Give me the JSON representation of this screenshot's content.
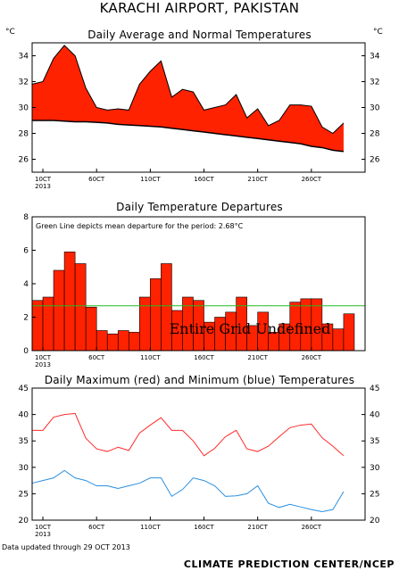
{
  "title": "KARACHI AIRPORT, PAKISTAN",
  "footer": {
    "updated": "Data updated through 29 OCT 2013",
    "credit": "CLIMATE PREDICTION CENTER/NCEP"
  },
  "unit_left": "°C",
  "unit_right": "°C",
  "colors": {
    "fill": "#ff2200",
    "max_line": "#ff2a2a",
    "min_line": "#2a8fe0",
    "mean_line": "#22bb22"
  },
  "chart_data": [
    {
      "type": "area",
      "title": "Daily Average and Normal Temperatures",
      "x_tick_labels": [
        "10CT",
        "60CT",
        "110CT",
        "160CT",
        "210CT",
        "260CT"
      ],
      "x_year_label": "2013",
      "x_tick_days": [
        1,
        6,
        11,
        16,
        21,
        26
      ],
      "x_range": [
        0,
        31
      ],
      "ylim": [
        25,
        35
      ],
      "y_ticks": [
        "26",
        "28",
        "30",
        "32",
        "34"
      ],
      "days": [
        0,
        1,
        2,
        3,
        4,
        5,
        6,
        7,
        8,
        9,
        10,
        11,
        12,
        13,
        14,
        15,
        16,
        17,
        18,
        19,
        20,
        21,
        22,
        23,
        24,
        25,
        26,
        27,
        28,
        29
      ],
      "average": [
        31.8,
        32.0,
        33.8,
        34.8,
        34.0,
        31.5,
        30.0,
        29.8,
        29.9,
        29.8,
        31.8,
        32.8,
        33.6,
        30.8,
        31.4,
        31.2,
        29.8,
        30.0,
        30.2,
        31.0,
        29.2,
        29.9,
        28.6,
        29.0,
        30.2,
        30.2,
        30.1,
        28.5,
        28.0,
        28.8
      ],
      "normal": [
        29.0,
        29.0,
        29.0,
        28.95,
        28.9,
        28.9,
        28.85,
        28.8,
        28.7,
        28.65,
        28.6,
        28.55,
        28.5,
        28.4,
        28.3,
        28.2,
        28.1,
        28.0,
        27.9,
        27.8,
        27.7,
        27.6,
        27.5,
        27.4,
        27.3,
        27.2,
        27.0,
        26.9,
        26.7,
        26.6
      ]
    },
    {
      "type": "bar",
      "title": "Daily Temperature Departures",
      "annotation": "Green Line depicts mean departure for the period: 2.68°C",
      "overlay_text": "Entire Grid Undefined",
      "x_tick_labels": [
        "10CT",
        "60CT",
        "110CT",
        "160CT",
        "210CT",
        "260CT"
      ],
      "x_year_label": "2013",
      "x_tick_days": [
        1,
        6,
        11,
        16,
        21,
        26
      ],
      "x_range": [
        0,
        31
      ],
      "ylim": [
        0,
        8
      ],
      "y_ticks": [
        "0",
        "2",
        "4",
        "6",
        "8"
      ],
      "mean_departure": 2.68,
      "days": [
        0,
        1,
        2,
        3,
        4,
        5,
        6,
        7,
        8,
        9,
        10,
        11,
        12,
        13,
        14,
        15,
        16,
        17,
        18,
        19,
        20,
        21,
        22,
        23,
        24,
        25,
        26,
        27,
        28,
        29
      ],
      "values": [
        3.0,
        3.2,
        4.8,
        5.9,
        5.2,
        2.6,
        1.2,
        1.0,
        1.2,
        1.1,
        3.2,
        4.3,
        5.2,
        2.4,
        3.2,
        3.0,
        1.7,
        2.0,
        2.3,
        3.2,
        1.5,
        2.3,
        1.1,
        1.6,
        2.9,
        3.1,
        3.1,
        1.6,
        1.3,
        2.2
      ]
    },
    {
      "type": "line",
      "title": "Daily Maximum (red) and Minimum (blue) Temperatures",
      "x_tick_labels": [
        "10CT",
        "60CT",
        "110CT",
        "160CT",
        "210CT",
        "260CT"
      ],
      "x_year_label": "2013",
      "x_tick_days": [
        1,
        6,
        11,
        16,
        21,
        26
      ],
      "x_range": [
        0,
        31
      ],
      "ylim": [
        20,
        45
      ],
      "y_ticks": [
        "20",
        "25",
        "30",
        "35",
        "40",
        "45"
      ],
      "days": [
        0,
        1,
        2,
        3,
        4,
        5,
        6,
        7,
        8,
        9,
        10,
        11,
        12,
        13,
        14,
        15,
        16,
        17,
        18,
        19,
        20,
        21,
        22,
        23,
        24,
        25,
        26,
        27,
        28,
        29
      ],
      "series": [
        {
          "key": "max",
          "values": [
            37.0,
            37.0,
            39.5,
            40.0,
            40.2,
            35.5,
            33.5,
            33.0,
            33.8,
            33.2,
            36.5,
            38.0,
            39.4,
            37.0,
            37.0,
            35.0,
            32.2,
            33.6,
            35.8,
            37.0,
            33.5,
            33.0,
            34.0,
            35.8,
            37.5,
            38.0,
            38.2,
            35.6,
            34.0,
            32.2
          ]
        },
        {
          "key": "min",
          "values": [
            27.0,
            27.5,
            28.0,
            29.4,
            28.0,
            27.5,
            26.5,
            26.5,
            26.0,
            26.5,
            27.0,
            28.0,
            28.0,
            24.5,
            25.8,
            28.0,
            27.5,
            26.5,
            24.5,
            24.6,
            25.0,
            26.5,
            23.2,
            22.4,
            23.0,
            22.5,
            22.0,
            21.6,
            22.0,
            25.4
          ]
        }
      ]
    }
  ]
}
